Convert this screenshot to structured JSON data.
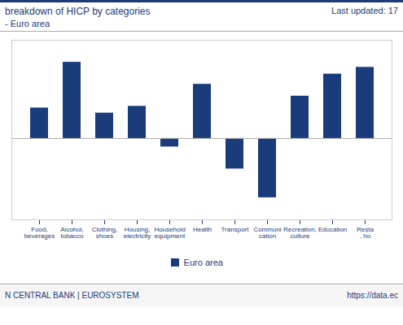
{
  "chart_data": {
    "type": "bar",
    "title": "breakdown of HICP by categories",
    "subtitle": "- Euro area",
    "annotations": [
      "Last updated: 17",
      "N CENTRAL BANK | EUROSYSTEM",
      "https://data.ec"
    ],
    "categories": [
      "Food,\nbeverages",
      "Alcohol,\ntobacco",
      "Clothing,\nshoes",
      "Housing,\nelectricity",
      "Household\nequipment",
      "Health",
      "Transport",
      "Communi\ncation",
      "Recreation,\nculture",
      "Education",
      "Resta\n, ho"
    ],
    "series": [
      {
        "name": "Euro area",
        "color": "#1a3c7b",
        "values": [
          1.8,
          4.5,
          1.5,
          1.9,
          -0.5,
          3.2,
          -1.8,
          -3.5,
          2.5,
          3.8,
          4.2
        ]
      }
    ],
    "ylim": [
      -4.8,
      5.8
    ],
    "grid": false,
    "legend": "bottom",
    "tick_labels": "x"
  }
}
